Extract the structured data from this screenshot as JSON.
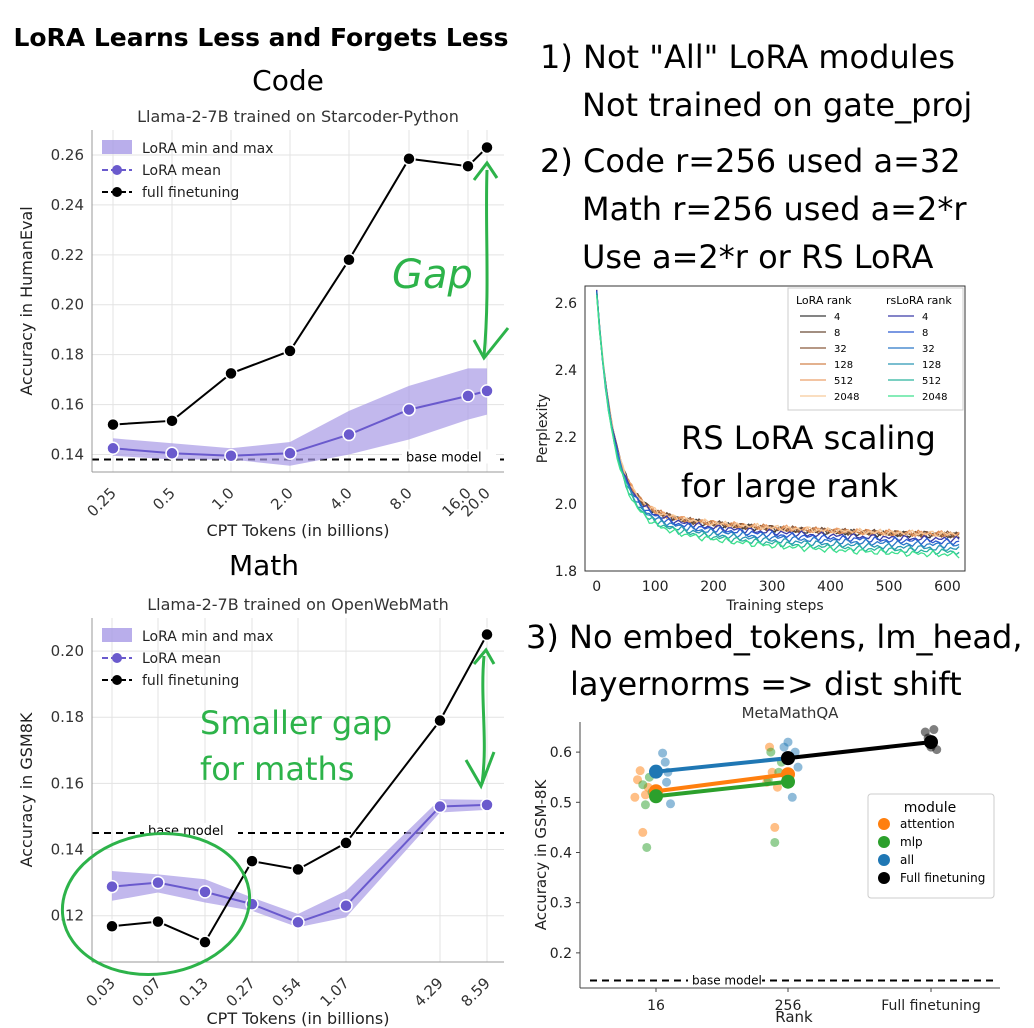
{
  "header": {
    "main_title": "LoRA Learns Less and Forgets Less",
    "code_heading": "Code",
    "math_heading": "Math"
  },
  "notes": {
    "note1_line1": "1) Not \"All\" LoRA modules",
    "note1_line2": "Not trained on gate_proj",
    "note2_line1": "2) Code r=256 used a=32",
    "note2_line2": "Math r=256 used a=2*r",
    "note2_line3": "Use a=2*r or RS LoRA",
    "note3_line1": "3) No embed_tokens, lm_head,",
    "note3_line2": "layernorms => dist shift",
    "rs_line1": "RS LoRA scaling",
    "rs_line2": "for large rank",
    "gap": "Gap",
    "smaller_gap_line1": "Smaller gap",
    "smaller_gap_line2": "for maths"
  },
  "colors": {
    "lora": "#6a5acd",
    "lora_band": "#a89ae6",
    "full": "#000000",
    "annotation_green": "#2db34a",
    "attention": "#ff7f0e",
    "mlp": "#2ca02c",
    "all": "#1f77b4"
  },
  "chart_data": [
    {
      "id": "code",
      "type": "line",
      "title": "Llama-2-7B trained on Starcoder-Python",
      "xlabel": "CPT Tokens (in billions)",
      "ylabel": "Accuracy in HumanEval",
      "x": [
        "0.25",
        "0.5",
        "1.0",
        "2.0",
        "4.0",
        "8.0",
        "16.0",
        "20.0"
      ],
      "ylim": [
        0.133,
        0.27
      ],
      "yticks": [
        "0.14",
        "0.16",
        "0.18",
        "0.20",
        "0.22",
        "0.24",
        "0.26"
      ],
      "ytick_values": [
        0.14,
        0.16,
        0.18,
        0.2,
        0.22,
        0.24,
        0.26
      ],
      "legend": [
        "LoRA min and max",
        "LoRA mean",
        "full finetuning"
      ],
      "legend_position": "top-left",
      "base_model": {
        "label": "base model",
        "value": 0.138
      },
      "series": [
        {
          "name": "LoRA mean",
          "values": [
            0.1425,
            0.1405,
            0.1395,
            0.1405,
            0.148,
            0.158,
            0.1635,
            0.1655
          ],
          "min": [
            0.1395,
            0.138,
            0.138,
            0.1355,
            0.14,
            0.146,
            0.154,
            0.156
          ],
          "max": [
            0.1465,
            0.1445,
            0.1425,
            0.145,
            0.1575,
            0.1675,
            0.1745,
            0.1745
          ]
        },
        {
          "name": "full finetuning",
          "values": [
            0.152,
            0.1535,
            0.1725,
            0.1815,
            0.218,
            0.2585,
            0.2555,
            0.263
          ]
        }
      ]
    },
    {
      "id": "math",
      "type": "line",
      "title": "Llama-2-7B trained on OpenWebMath",
      "xlabel": "CPT Tokens (in billions)",
      "ylabel": "Accuracy in GSM8K",
      "x": [
        "0.03",
        "0.07",
        "0.13",
        "0.27",
        "0.54",
        "1.07",
        "4.29",
        "8.59"
      ],
      "ylim": [
        0.106,
        0.21
      ],
      "yticks": [
        "0.12",
        "0.14",
        "0.16",
        "0.18",
        "0.20"
      ],
      "ytick_values": [
        0.12,
        0.14,
        0.16,
        0.18,
        0.2
      ],
      "legend": [
        "LoRA min and max",
        "LoRA mean",
        "full finetuning"
      ],
      "legend_position": "top-left",
      "base_model": {
        "label": "base model",
        "value": 0.145
      },
      "series": [
        {
          "name": "LoRA mean",
          "values": [
            0.1288,
            0.13,
            0.1272,
            0.1235,
            0.118,
            0.123,
            0.153,
            0.1535
          ],
          "min": [
            0.1245,
            0.127,
            0.124,
            0.1215,
            0.1165,
            0.1195,
            0.1512,
            0.152
          ],
          "max": [
            0.1335,
            0.1325,
            0.131,
            0.1255,
            0.1205,
            0.1275,
            0.1552,
            0.155
          ]
        },
        {
          "name": "full finetuning",
          "values": [
            0.1168,
            0.1182,
            0.112,
            0.1365,
            0.134,
            0.142,
            0.179,
            0.205
          ]
        }
      ]
    },
    {
      "id": "rslora",
      "type": "line",
      "xlabel": "Training steps",
      "ylabel": "Perplexity",
      "xlim": [
        -20,
        630
      ],
      "ylim": [
        1.8,
        2.65
      ],
      "xticks": [
        0,
        100,
        200,
        300,
        400,
        500,
        600
      ],
      "yticks": [
        1.8,
        2.0,
        2.2,
        2.4,
        2.6
      ],
      "legend_position": "top-right",
      "legend_titles": [
        "LoRA rank",
        "rsLoRA rank"
      ],
      "lora_ranks": [
        "4",
        "8",
        "32",
        "128",
        "512",
        "2048"
      ],
      "rslora_ranks": [
        "4",
        "8",
        "32",
        "128",
        "512",
        "2048"
      ],
      "lora_colors": [
        "#3a3a3a",
        "#6b4a36",
        "#8a5a3c",
        "#d2824a",
        "#eca06a",
        "#f7c99a"
      ],
      "rslora_colors": [
        "#3a3aa8",
        "#2a5ad0",
        "#2a78c8",
        "#2a96b4",
        "#2ab49e",
        "#3ee08e"
      ],
      "lora_final": [
        1.897,
        1.9,
        1.9,
        1.901,
        1.902,
        1.902
      ],
      "rslora_final": [
        1.885,
        1.877,
        1.867,
        1.856,
        1.846,
        1.837
      ]
    },
    {
      "id": "metamath",
      "type": "scatter",
      "title": "MetaMathQA",
      "xlabel": "Rank",
      "ylabel": "Accuracy in GSM-8K",
      "categories": [
        "16",
        "256",
        "Full finetuning"
      ],
      "ylim": [
        0.13,
        0.66
      ],
      "yticks": [
        "0.2",
        "0.3",
        "0.4",
        "0.5",
        "0.6"
      ],
      "ytick_values": [
        0.2,
        0.3,
        0.4,
        0.5,
        0.6
      ],
      "legend_title": "module",
      "legend": [
        "attention",
        "mlp",
        "all",
        "Full finetuning"
      ],
      "legend_position": "center-right",
      "base_model": {
        "label": "base model",
        "value": 0.145
      },
      "series": [
        {
          "name": "attention",
          "fit": [
            [
              0,
              0.522
            ],
            [
              1,
              0.556
            ]
          ],
          "points": [
            [
              -0.14,
              0.545
            ],
            [
              -0.12,
              0.563
            ],
            [
              -0.1,
              0.44
            ],
            [
              -0.08,
              0.515
            ],
            [
              -0.06,
              0.53
            ],
            [
              -0.16,
              0.51
            ],
            [
              0.86,
              0.61
            ],
            [
              0.88,
              0.56
            ],
            [
              0.9,
              0.45
            ],
            [
              0.92,
              0.53
            ],
            [
              0.84,
              0.54
            ]
          ]
        },
        {
          "name": "mlp",
          "fit": [
            [
              0,
              0.512
            ],
            [
              1,
              0.541
            ]
          ],
          "points": [
            [
              -0.1,
              0.535
            ],
            [
              -0.07,
              0.41
            ],
            [
              -0.05,
              0.55
            ],
            [
              -0.03,
              0.52
            ],
            [
              -0.08,
              0.495
            ],
            [
              0.85,
              0.545
            ],
            [
              0.87,
              0.6
            ],
            [
              0.9,
              0.42
            ],
            [
              0.93,
              0.56
            ],
            [
              0.95,
              0.58
            ]
          ]
        },
        {
          "name": "all",
          "fit": [
            [
              0,
              0.561
            ],
            [
              1,
              0.588
            ]
          ],
          "points": [
            [
              0.05,
              0.598
            ],
            [
              0.07,
              0.58
            ],
            [
              0.09,
              0.56
            ],
            [
              0.11,
              0.497
            ],
            [
              0.08,
              0.54
            ],
            [
              0.97,
              0.61
            ],
            [
              1.0,
              0.62
            ],
            [
              1.03,
              0.51
            ],
            [
              1.05,
              0.6
            ],
            [
              1.07,
              0.57
            ],
            [
              0.99,
              0.55
            ]
          ]
        },
        {
          "name": "Full finetuning",
          "fit": [
            [
              1,
              0.588
            ],
            [
              2,
              0.62
            ]
          ],
          "points": [
            [
              1.96,
              0.64
            ],
            [
              1.98,
              0.628
            ],
            [
              2.0,
              0.62
            ],
            [
              2.02,
              0.645
            ],
            [
              2.04,
              0.605
            ],
            [
              2.0,
              0.61
            ]
          ]
        }
      ]
    }
  ]
}
